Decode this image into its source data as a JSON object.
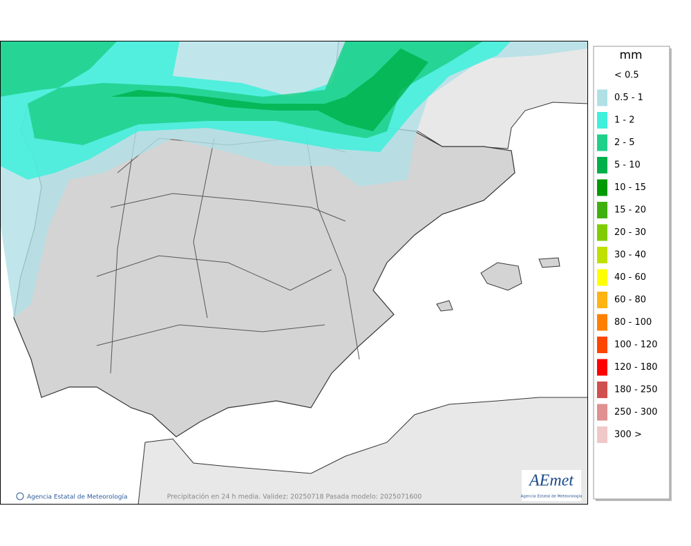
{
  "map": {
    "footer": "Precipitación en 24 h media. Validez: 20250718 Pasada modelo: 2025071600",
    "credit": "Agencia Estatal de Meteorología",
    "logo": {
      "name": "AEmet",
      "subtitle": "Agencia Estatal de Meteorología"
    }
  },
  "legend": {
    "title": "mm",
    "entries": [
      {
        "label": "< 0.5"
      },
      {
        "label": "0.5 - 1",
        "color": "#b0e0e6"
      },
      {
        "label": "1 - 2",
        "color": "#3ff0dc"
      },
      {
        "label": "2 - 5",
        "color": "#1fd08a"
      },
      {
        "label": "5 - 10",
        "color": "#00b04a"
      },
      {
        "label": "10 - 15",
        "color": "#009a00"
      },
      {
        "label": "15 - 20",
        "color": "#40b010"
      },
      {
        "label": "20 - 30",
        "color": "#80cc00"
      },
      {
        "label": "30 - 40",
        "color": "#c0e000"
      },
      {
        "label": "40 - 60",
        "color": "#ffff00"
      },
      {
        "label": "60 - 80",
        "color": "#ffb414"
      },
      {
        "label": "80 - 100",
        "color": "#ff8000"
      },
      {
        "label": "100 - 120",
        "color": "#ff4600"
      },
      {
        "label": "120 - 180",
        "color": "#ff0000"
      },
      {
        "label": "180 - 250",
        "color": "#d05050"
      },
      {
        "label": "250 - 300",
        "color": "#e09090"
      },
      {
        "label": "300 >",
        "color": "#f0c8c8"
      }
    ]
  }
}
